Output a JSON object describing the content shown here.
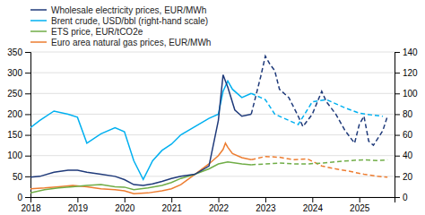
{
  "chart_data": {
    "type": "line",
    "legend": "upper-left",
    "grid": true,
    "xlim": [
      2018.0,
      2025.75
    ],
    "xticks": [
      2018,
      2019,
      2020,
      2021,
      2022,
      2023,
      2024,
      2025
    ],
    "ylim": [
      0,
      350
    ],
    "yticks": [
      0,
      50,
      100,
      150,
      200,
      250,
      300,
      350
    ],
    "y2lim": [
      0,
      140
    ],
    "y2ticks": [
      0,
      20,
      40,
      60,
      80,
      100,
      120,
      140
    ],
    "series": [
      {
        "name": "Wholesale electricity prices, EUR/MWh",
        "color": "#1f3a7a",
        "line_style": "solid",
        "x": [
          2018.0,
          2018.2,
          2018.5,
          2018.8,
          2019.0,
          2019.2,
          2019.5,
          2019.8,
          2020.0,
          2020.2,
          2020.4,
          2020.6,
          2020.8,
          2021.0,
          2021.2,
          2021.5,
          2021.8,
          2022.0,
          2022.1,
          2022.15,
          2022.2,
          2022.35,
          2022.5,
          2022.7
        ],
        "values": [
          48,
          50,
          60,
          65,
          65,
          60,
          55,
          50,
          42,
          30,
          28,
          32,
          38,
          45,
          50,
          55,
          75,
          185,
          295,
          280,
          265,
          210,
          195,
          200
        ]
      },
      {
        "color": "#1f3a7a",
        "line_style": "dashed",
        "x": [
          2022.7,
          2022.9,
          2023.0,
          2023.1,
          2023.2,
          2023.3,
          2023.5,
          2023.7,
          2023.8,
          2024.0,
          2024.2,
          2024.3,
          2024.5,
          2024.7,
          2024.9,
          2025.0,
          2025.1,
          2025.2,
          2025.3,
          2025.5,
          2025.6
        ],
        "values": [
          200,
          290,
          340,
          320,
          305,
          260,
          240,
          195,
          170,
          200,
          255,
          230,
          200,
          160,
          130,
          175,
          195,
          135,
          125,
          160,
          195
        ]
      },
      {
        "name": "Brent crude, USD/bbl (right-hand scale)",
        "color": "#00b0f0",
        "line_style": "solid",
        "axis": "y2",
        "x": [
          2018.0,
          2018.2,
          2018.5,
          2018.8,
          2019.0,
          2019.2,
          2019.5,
          2019.8,
          2020.0,
          2020.2,
          2020.4,
          2020.6,
          2020.8,
          2021.0,
          2021.2,
          2021.5,
          2021.8,
          2022.0,
          2022.1,
          2022.2,
          2022.3,
          2022.5,
          2022.7
        ],
        "values": [
          67,
          74,
          83,
          80,
          77,
          52,
          61,
          67,
          63,
          35,
          17,
          35,
          45,
          51,
          60,
          68,
          76,
          80,
          102,
          112,
          104,
          96,
          100
        ]
      },
      {
        "color": "#00b0f0",
        "line_style": "dashed",
        "axis": "y2",
        "x": [
          2022.7,
          2022.9,
          2023.0,
          2023.2,
          2023.5,
          2023.7,
          2024.0,
          2024.3,
          2024.5,
          2024.7,
          2025.0,
          2025.3,
          2025.5
        ],
        "values": [
          100,
          96,
          94,
          80,
          74,
          70,
          92,
          94,
          90,
          86,
          81,
          79,
          78
        ]
      },
      {
        "name": "ETS price, EUR/tCO2e",
        "color": "#70ad47",
        "line_style": "solid",
        "x": [
          2018.0,
          2018.3,
          2018.6,
          2018.9,
          2019.2,
          2019.5,
          2019.8,
          2020.0,
          2020.2,
          2020.5,
          2020.8,
          2021.0,
          2021.2,
          2021.5,
          2021.8,
          2022.0,
          2022.2,
          2022.5,
          2022.7
        ],
        "values": [
          10,
          18,
          22,
          25,
          28,
          30,
          25,
          24,
          18,
          22,
          28,
          35,
          45,
          55,
          68,
          80,
          85,
          80,
          78
        ]
      },
      {
        "color": "#70ad47",
        "line_style": "dashed",
        "x": [
          2022.7,
          2023.0,
          2023.3,
          2023.6,
          2023.9,
          2024.2,
          2024.5,
          2024.8,
          2025.1,
          2025.4,
          2025.6
        ],
        "values": [
          78,
          80,
          82,
          80,
          80,
          82,
          85,
          88,
          90,
          88,
          90
        ]
      },
      {
        "name": "Euro area natural gas prices, EUR/MWh",
        "color": "#ed7d31",
        "line_style": "solid",
        "x": [
          2018.0,
          2018.3,
          2018.6,
          2018.9,
          2019.2,
          2019.5,
          2019.8,
          2020.0,
          2020.2,
          2020.5,
          2020.8,
          2021.0,
          2021.2,
          2021.5,
          2021.8,
          2022.0,
          2022.1,
          2022.15,
          2022.2,
          2022.3,
          2022.5,
          2022.7
        ],
        "values": [
          20,
          22,
          25,
          28,
          25,
          20,
          18,
          15,
          8,
          10,
          15,
          20,
          30,
          55,
          80,
          100,
          115,
          130,
          120,
          105,
          95,
          90
        ]
      },
      {
        "color": "#ed7d31",
        "line_style": "dashed",
        "x": [
          2022.7,
          2023.0,
          2023.3,
          2023.6,
          2023.9,
          2024.2,
          2024.5,
          2024.8,
          2025.1,
          2025.4,
          2025.6
        ],
        "values": [
          90,
          98,
          96,
          90,
          92,
          75,
          68,
          62,
          55,
          50,
          48
        ]
      }
    ]
  }
}
